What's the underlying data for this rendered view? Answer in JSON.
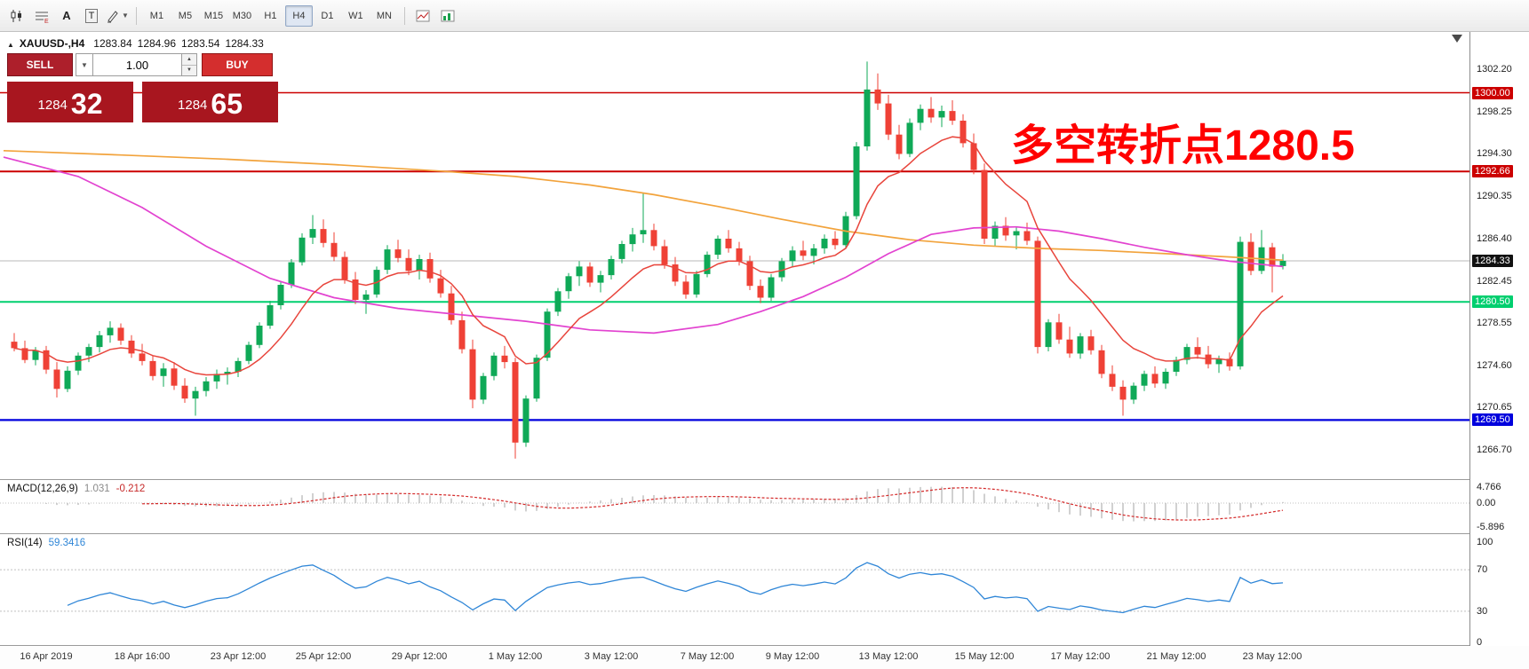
{
  "colors": {
    "bull": "#0fa957",
    "bear": "#ef4136",
    "ma_orange": "#f2a33c",
    "ma_magenta": "#e243d0",
    "ma_red": "#e8453c",
    "macd_hist": "#bdbdbd",
    "macd_signal": "#d42a2a",
    "rsi": "#2f86d7",
    "current_price_line": "#b8b8b8",
    "level_dashed": "#c0c0c0"
  },
  "toolbar": {
    "text_tool_label": "A",
    "textbox_tool_label": "T",
    "timeframes": [
      {
        "label": "M1",
        "active": false
      },
      {
        "label": "M5",
        "active": false
      },
      {
        "label": "M15",
        "active": false
      },
      {
        "label": "M30",
        "active": false
      },
      {
        "label": "H1",
        "active": false
      },
      {
        "label": "H4",
        "active": true
      },
      {
        "label": "D1",
        "active": false
      },
      {
        "label": "W1",
        "active": false
      },
      {
        "label": "MN",
        "active": false
      }
    ]
  },
  "trade_panel": {
    "sell_label": "SELL",
    "buy_label": "BUY",
    "volume": "1.00",
    "sell_price_small": "1284",
    "sell_price_big": "32",
    "buy_price_small": "1284",
    "buy_price_big": "65"
  },
  "chart": {
    "symbol_header": "XAUUSD-,H4",
    "ohlc": {
      "open": "1283.84",
      "high": "1284.96",
      "low": "1283.54",
      "close": "1284.33"
    },
    "annotation": "多空转折点1280.5"
  },
  "chart_data": {
    "type": "candlestick",
    "symbol": "XAUUSD",
    "timeframe": "H4",
    "price_ticks": [
      1302.2,
      1298.25,
      1294.3,
      1290.35,
      1286.4,
      1282.45,
      1278.55,
      1274.6,
      1270.65,
      1266.7
    ],
    "hlines": [
      {
        "price": 1300.0,
        "label": "1300.00",
        "color": "#cc0000",
        "width": 1.6
      },
      {
        "price": 1292.66,
        "label": "1292.66",
        "color": "#cc0000",
        "width": 2
      },
      {
        "price": 1280.5,
        "label": "1280.50",
        "color": "#00cf6f",
        "width": 2
      },
      {
        "price": 1269.5,
        "label": "1269.50",
        "color": "#0000dd",
        "width": 2.2
      }
    ],
    "current_price": {
      "value": 1284.33,
      "label": "1284.33",
      "label_bg": "#111111"
    },
    "time_labels": [
      {
        "text": "16 Apr 2019",
        "index": 3
      },
      {
        "text": "18 Apr 16:00",
        "index": 12
      },
      {
        "text": "23 Apr 12:00",
        "index": 21
      },
      {
        "text": "25 Apr 12:00",
        "index": 29
      },
      {
        "text": "29 Apr 12:00",
        "index": 38
      },
      {
        "text": "1 May 12:00",
        "index": 47
      },
      {
        "text": "3 May 12:00",
        "index": 56
      },
      {
        "text": "7 May 12:00",
        "index": 65
      },
      {
        "text": "9 May 12:00",
        "index": 73
      },
      {
        "text": "13 May 12:00",
        "index": 82
      },
      {
        "text": "15 May 12:00",
        "index": 91
      },
      {
        "text": "17 May 12:00",
        "index": 100
      },
      {
        "text": "21 May 12:00",
        "index": 109
      },
      {
        "text": "23 May 12:00",
        "index": 118
      }
    ],
    "candles": [
      [
        1276.8,
        1277.6,
        1275.9,
        1276.2
      ],
      [
        1276.2,
        1276.9,
        1274.8,
        1275.1
      ],
      [
        1275.1,
        1276.3,
        1274.6,
        1276.0
      ],
      [
        1276.0,
        1276.4,
        1273.8,
        1274.2
      ],
      [
        1274.2,
        1274.9,
        1271.6,
        1272.4
      ],
      [
        1272.4,
        1274.5,
        1272.1,
        1274.1
      ],
      [
        1274.1,
        1275.8,
        1273.7,
        1275.5
      ],
      [
        1275.5,
        1276.6,
        1274.9,
        1276.3
      ],
      [
        1276.3,
        1277.8,
        1275.8,
        1277.4
      ],
      [
        1277.4,
        1278.7,
        1276.7,
        1278.1
      ],
      [
        1278.1,
        1278.5,
        1276.5,
        1276.9
      ],
      [
        1276.9,
        1277.4,
        1275.3,
        1275.7
      ],
      [
        1275.7,
        1276.6,
        1274.6,
        1275.0
      ],
      [
        1275.0,
        1275.5,
        1273.2,
        1273.6
      ],
      [
        1273.6,
        1274.8,
        1272.6,
        1274.3
      ],
      [
        1274.3,
        1274.9,
        1272.3,
        1272.7
      ],
      [
        1272.7,
        1273.4,
        1271.1,
        1271.5
      ],
      [
        1271.5,
        1272.6,
        1269.9,
        1272.2
      ],
      [
        1272.2,
        1273.5,
        1271.7,
        1273.1
      ],
      [
        1273.1,
        1274.2,
        1272.4,
        1273.8
      ],
      [
        1273.8,
        1274.4,
        1272.8,
        1274.0
      ],
      [
        1274.0,
        1275.3,
        1273.5,
        1275.0
      ],
      [
        1275.0,
        1276.8,
        1274.7,
        1276.5
      ],
      [
        1276.5,
        1278.6,
        1276.2,
        1278.3
      ],
      [
        1278.3,
        1280.6,
        1278.0,
        1280.2
      ],
      [
        1280.2,
        1282.4,
        1279.8,
        1282.1
      ],
      [
        1282.1,
        1284.5,
        1281.8,
        1284.2
      ],
      [
        1284.2,
        1286.9,
        1283.9,
        1286.5
      ],
      [
        1286.5,
        1288.6,
        1285.9,
        1287.3
      ],
      [
        1287.3,
        1288.2,
        1285.6,
        1286.0
      ],
      [
        1286.0,
        1287.0,
        1284.3,
        1284.7
      ],
      [
        1284.7,
        1285.2,
        1282.2,
        1282.6
      ],
      [
        1282.6,
        1283.3,
        1280.3,
        1280.7
      ],
      [
        1280.7,
        1281.6,
        1279.4,
        1281.2
      ],
      [
        1281.2,
        1283.8,
        1280.9,
        1283.5
      ],
      [
        1283.5,
        1285.8,
        1283.1,
        1285.4
      ],
      [
        1285.4,
        1286.3,
        1284.2,
        1284.6
      ],
      [
        1284.6,
        1285.4,
        1283.0,
        1283.4
      ],
      [
        1283.4,
        1284.9,
        1282.6,
        1284.5
      ],
      [
        1284.5,
        1285.1,
        1282.3,
        1282.7
      ],
      [
        1282.7,
        1283.5,
        1280.9,
        1281.3
      ],
      [
        1281.3,
        1282.0,
        1278.4,
        1278.8
      ],
      [
        1278.8,
        1279.6,
        1275.7,
        1276.1
      ],
      [
        1276.1,
        1277.0,
        1270.6,
        1271.4
      ],
      [
        1271.4,
        1273.9,
        1271.0,
        1273.6
      ],
      [
        1273.6,
        1275.8,
        1273.2,
        1275.5
      ],
      [
        1275.5,
        1276.4,
        1274.3,
        1274.9
      ],
      [
        1274.9,
        1275.3,
        1265.9,
        1267.4
      ],
      [
        1267.4,
        1271.8,
        1267.0,
        1271.5
      ],
      [
        1271.5,
        1275.6,
        1271.2,
        1275.3
      ],
      [
        1275.3,
        1279.9,
        1275.0,
        1279.6
      ],
      [
        1279.6,
        1281.8,
        1279.2,
        1281.5
      ],
      [
        1281.5,
        1283.2,
        1280.8,
        1282.9
      ],
      [
        1282.9,
        1284.3,
        1282.0,
        1283.8
      ],
      [
        1283.8,
        1284.2,
        1281.9,
        1282.3
      ],
      [
        1282.3,
        1283.4,
        1281.4,
        1283.0
      ],
      [
        1283.0,
        1284.8,
        1282.6,
        1284.5
      ],
      [
        1284.5,
        1286.2,
        1284.1,
        1285.9
      ],
      [
        1285.9,
        1287.4,
        1285.2,
        1286.8
      ],
      [
        1286.8,
        1290.7,
        1286.0,
        1287.2
      ],
      [
        1287.2,
        1287.8,
        1285.3,
        1285.7
      ],
      [
        1285.7,
        1286.3,
        1283.6,
        1284.0
      ],
      [
        1284.0,
        1284.7,
        1282.0,
        1282.4
      ],
      [
        1282.4,
        1283.0,
        1280.8,
        1281.2
      ],
      [
        1281.2,
        1283.4,
        1280.9,
        1283.1
      ],
      [
        1283.1,
        1285.2,
        1282.8,
        1284.9
      ],
      [
        1284.9,
        1286.7,
        1284.5,
        1286.4
      ],
      [
        1286.4,
        1287.2,
        1285.1,
        1285.5
      ],
      [
        1285.5,
        1286.1,
        1283.9,
        1284.3
      ],
      [
        1284.3,
        1284.8,
        1281.6,
        1282.0
      ],
      [
        1282.0,
        1282.6,
        1280.4,
        1280.9
      ],
      [
        1280.9,
        1283.1,
        1280.6,
        1282.8
      ],
      [
        1282.8,
        1284.6,
        1282.4,
        1284.3
      ],
      [
        1284.3,
        1285.7,
        1283.8,
        1285.3
      ],
      [
        1285.3,
        1286.2,
        1284.4,
        1284.8
      ],
      [
        1284.8,
        1285.9,
        1284.0,
        1285.5
      ],
      [
        1285.5,
        1286.8,
        1285.0,
        1286.4
      ],
      [
        1286.4,
        1287.1,
        1285.4,
        1285.8
      ],
      [
        1285.8,
        1288.9,
        1285.5,
        1288.5
      ],
      [
        1288.5,
        1295.4,
        1288.2,
        1295.0
      ],
      [
        1295.0,
        1302.9,
        1294.6,
        1300.3
      ],
      [
        1300.3,
        1301.8,
        1298.4,
        1299.0
      ],
      [
        1299.0,
        1299.8,
        1295.6,
        1296.1
      ],
      [
        1296.1,
        1297.0,
        1293.8,
        1294.3
      ],
      [
        1294.3,
        1297.6,
        1294.0,
        1297.2
      ],
      [
        1297.2,
        1298.9,
        1296.5,
        1298.5
      ],
      [
        1298.5,
        1299.6,
        1297.2,
        1297.7
      ],
      [
        1297.7,
        1298.8,
        1296.8,
        1298.3
      ],
      [
        1298.3,
        1299.3,
        1297.0,
        1297.4
      ],
      [
        1297.4,
        1298.0,
        1294.9,
        1295.3
      ],
      [
        1295.3,
        1296.2,
        1292.4,
        1292.8
      ],
      [
        1292.8,
        1293.4,
        1285.9,
        1286.4
      ],
      [
        1286.4,
        1288.0,
        1285.7,
        1287.6
      ],
      [
        1287.6,
        1288.4,
        1286.2,
        1286.7
      ],
      [
        1286.7,
        1287.5,
        1285.4,
        1287.1
      ],
      [
        1287.1,
        1287.9,
        1285.8,
        1286.2
      ],
      [
        1286.2,
        1286.6,
        1275.7,
        1276.3
      ],
      [
        1276.3,
        1278.9,
        1275.9,
        1278.6
      ],
      [
        1278.6,
        1279.4,
        1276.6,
        1277.0
      ],
      [
        1277.0,
        1278.2,
        1275.3,
        1275.7
      ],
      [
        1275.7,
        1277.6,
        1275.2,
        1277.3
      ],
      [
        1277.3,
        1277.9,
        1275.6,
        1276.0
      ],
      [
        1276.0,
        1276.5,
        1273.4,
        1273.8
      ],
      [
        1273.8,
        1274.6,
        1272.2,
        1272.6
      ],
      [
        1272.6,
        1273.2,
        1269.9,
        1271.4
      ],
      [
        1271.4,
        1273.0,
        1271.0,
        1272.7
      ],
      [
        1272.7,
        1274.1,
        1272.2,
        1273.8
      ],
      [
        1273.8,
        1274.5,
        1272.5,
        1272.9
      ],
      [
        1272.9,
        1274.3,
        1272.4,
        1274.0
      ],
      [
        1274.0,
        1275.4,
        1273.6,
        1275.1
      ],
      [
        1275.1,
        1276.6,
        1274.7,
        1276.3
      ],
      [
        1276.3,
        1277.2,
        1275.2,
        1275.6
      ],
      [
        1275.6,
        1276.4,
        1274.3,
        1274.7
      ],
      [
        1274.7,
        1275.5,
        1273.9,
        1275.2
      ],
      [
        1275.2,
        1275.8,
        1274.1,
        1274.5
      ],
      [
        1274.5,
        1286.6,
        1274.2,
        1286.1
      ],
      [
        1286.1,
        1286.9,
        1283.0,
        1283.4
      ],
      [
        1283.4,
        1287.2,
        1283.1,
        1285.6
      ],
      [
        1285.6,
        1286.0,
        1281.4,
        1283.8
      ],
      [
        1283.84,
        1284.96,
        1283.54,
        1284.33
      ]
    ],
    "ma_orange": [
      [
        -1,
        1294.6
      ],
      [
        10,
        1294.2
      ],
      [
        20,
        1293.8
      ],
      [
        30,
        1293.3
      ],
      [
        40,
        1292.7
      ],
      [
        47,
        1292.2
      ],
      [
        54,
        1291.4
      ],
      [
        60,
        1290.5
      ],
      [
        66,
        1289.4
      ],
      [
        72,
        1288.2
      ],
      [
        78,
        1287.1
      ],
      [
        84,
        1286.3
      ],
      [
        90,
        1285.8
      ],
      [
        96,
        1285.5
      ],
      [
        102,
        1285.3
      ],
      [
        108,
        1285.0
      ],
      [
        114,
        1284.7
      ],
      [
        119,
        1284.4
      ]
    ],
    "ma_magenta": [
      [
        -1,
        1294.0
      ],
      [
        6,
        1292.2
      ],
      [
        12,
        1289.3
      ],
      [
        18,
        1285.7
      ],
      [
        24,
        1282.7
      ],
      [
        30,
        1280.9
      ],
      [
        36,
        1279.9
      ],
      [
        42,
        1279.3
      ],
      [
        48,
        1278.7
      ],
      [
        54,
        1277.9
      ],
      [
        60,
        1277.6
      ],
      [
        66,
        1278.4
      ],
      [
        70,
        1279.6
      ],
      [
        74,
        1281.0
      ],
      [
        78,
        1282.8
      ],
      [
        82,
        1285.0
      ],
      [
        86,
        1286.8
      ],
      [
        90,
        1287.4
      ],
      [
        94,
        1287.5
      ],
      [
        98,
        1287.1
      ],
      [
        102,
        1286.4
      ],
      [
        106,
        1285.6
      ],
      [
        110,
        1284.9
      ],
      [
        114,
        1284.3
      ],
      [
        119,
        1283.8
      ]
    ],
    "ma_red_period": 10,
    "indicators": {
      "macd": {
        "label": "MACD(12,26,9)",
        "value_main": "1.031",
        "value_signal": "-0.212",
        "fast": 12,
        "slow": 26,
        "signal": 9,
        "scale": [
          "4.766",
          "0.00",
          "-5.896"
        ],
        "scale_values": [
          4.766,
          0,
          -5.896
        ]
      },
      "rsi": {
        "label": "RSI(14)",
        "value": "59.3416",
        "period": 14,
        "scale": [
          "100",
          "70",
          "30",
          "0"
        ],
        "scale_values": [
          100,
          70,
          30,
          0
        ],
        "levels": [
          70,
          30
        ]
      }
    }
  }
}
